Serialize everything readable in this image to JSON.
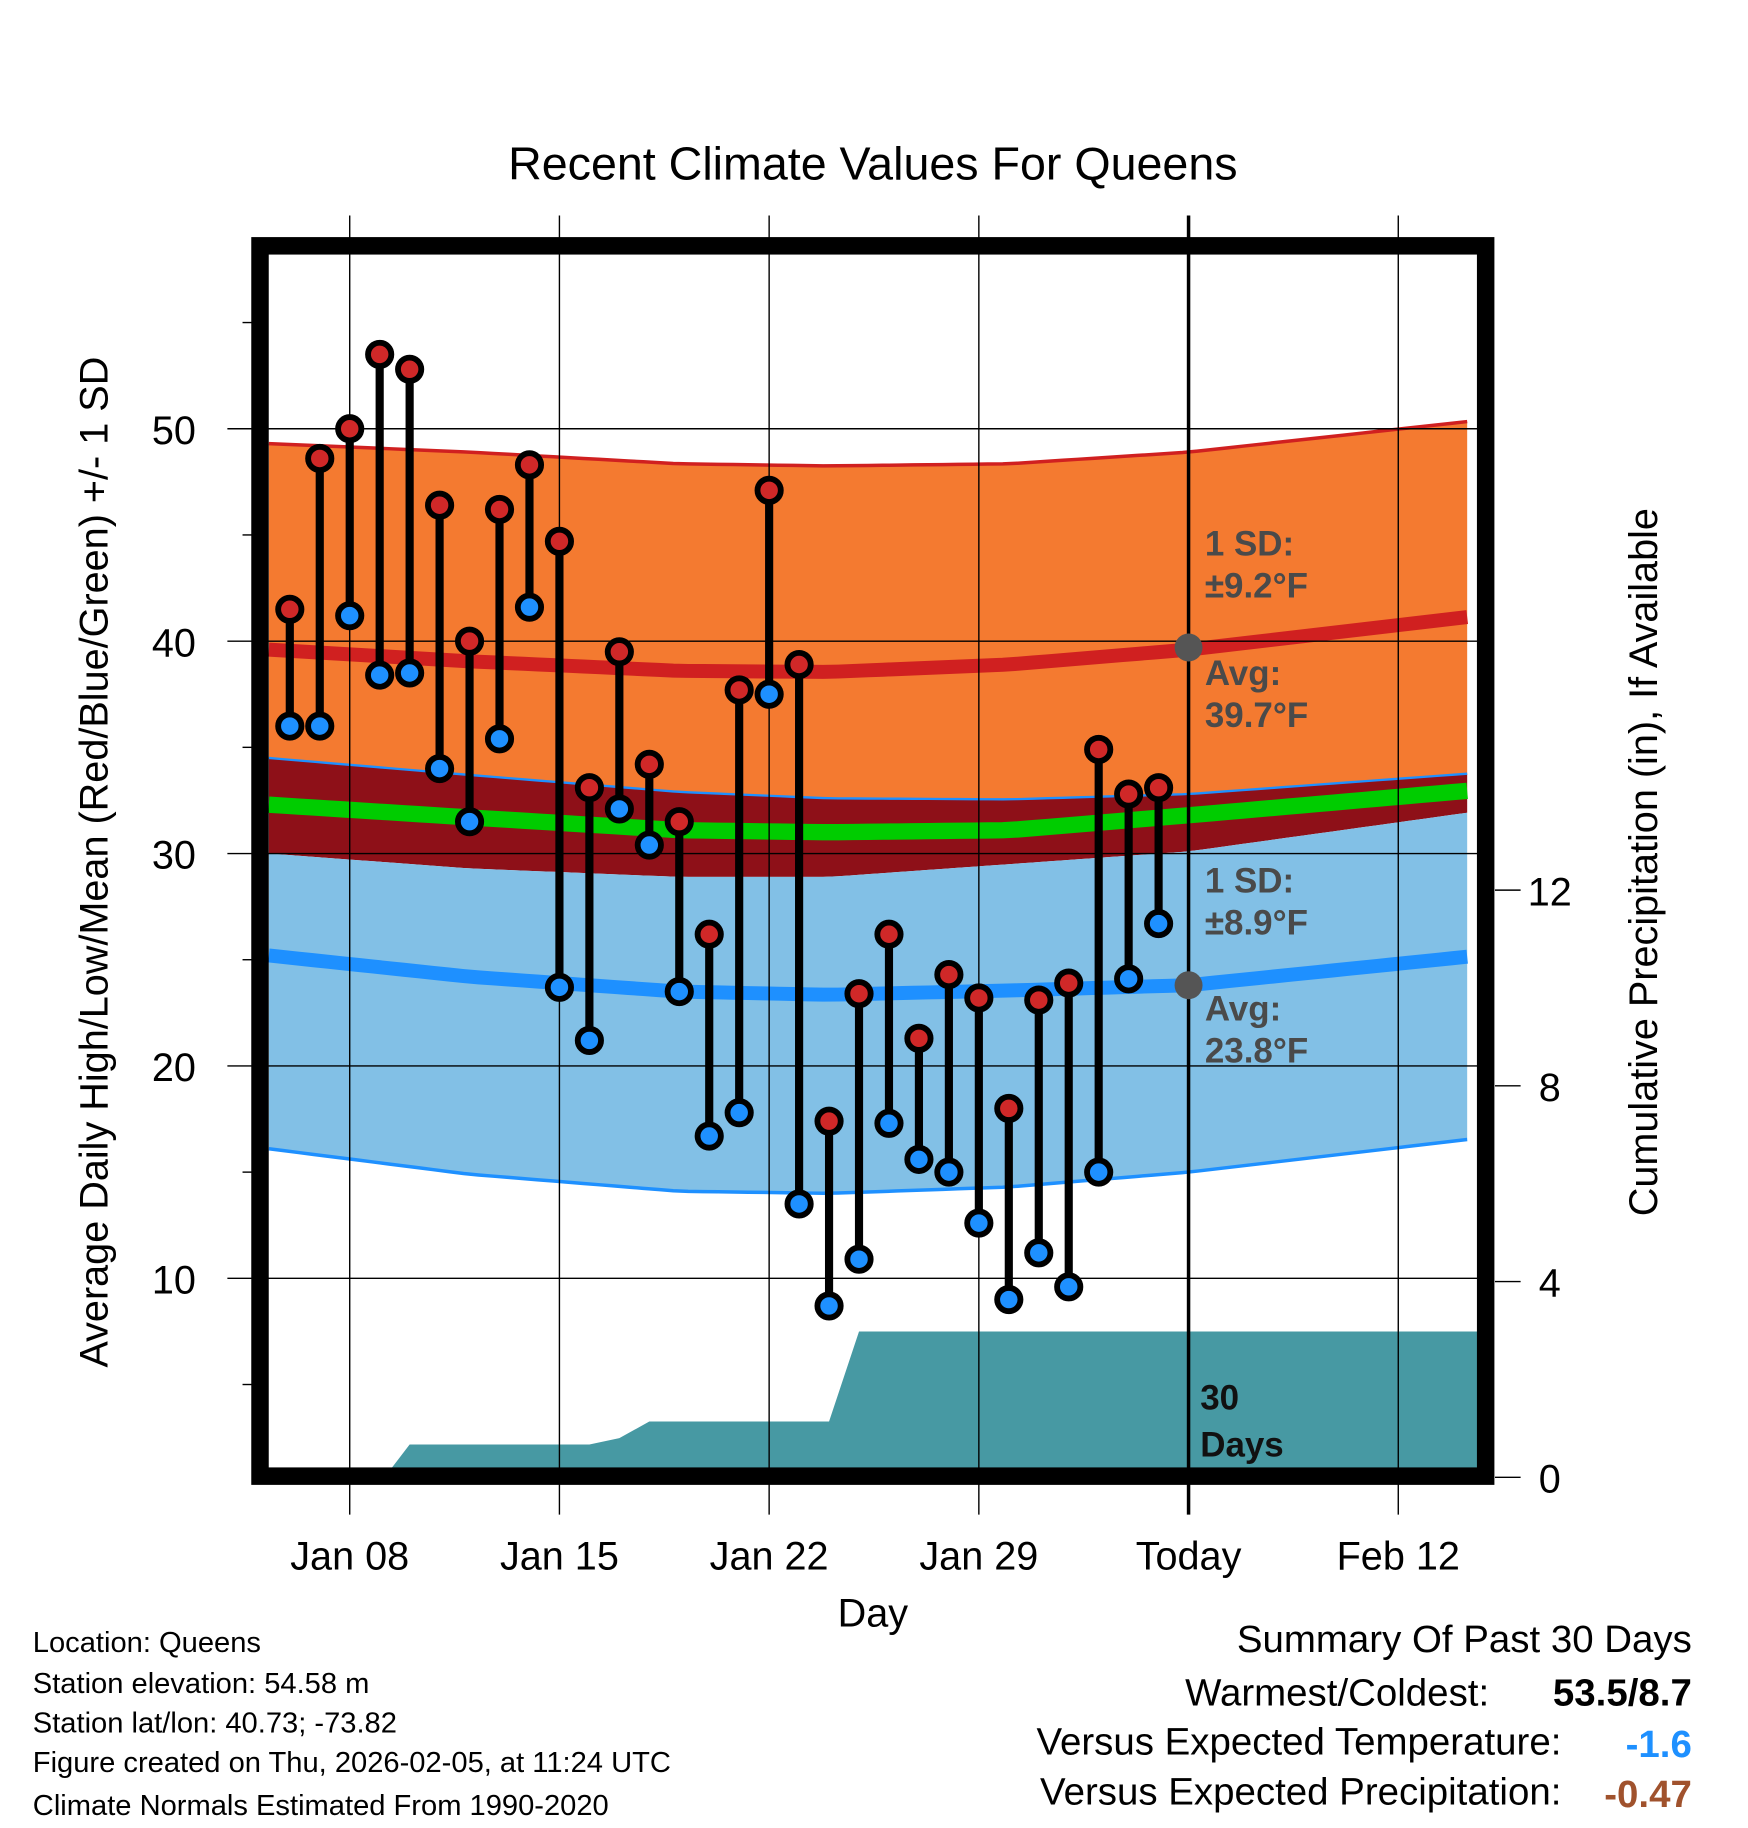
{
  "chart_data": {
    "type": "line",
    "title": "Recent Climate Values For Queens",
    "xlabel": "Day",
    "ylabel": "Average Daily High/Low/Mean (Red/Blue/Green) +/- 1 SD",
    "y2label": "Cumulative Precipitation (in), If Available",
    "ylim": [
      1.1,
      58.2
    ],
    "y2lim": [
      0,
      14.8
    ],
    "xlim_day_of_year": [
      5.3,
      45.7
    ],
    "grid": true,
    "x_ticks": [
      {
        "day": 8,
        "label": "Jan 08"
      },
      {
        "day": 15,
        "label": "Jan 15"
      },
      {
        "day": 22,
        "label": "Jan 22"
      },
      {
        "day": 29,
        "label": "Jan 29"
      },
      {
        "day": 36,
        "label": "Today"
      },
      {
        "day": 43,
        "label": "Feb 12"
      }
    ],
    "y_ticks": [
      10,
      20,
      30,
      40,
      50
    ],
    "y_minor_ticks": [
      5,
      15,
      25,
      35,
      45,
      55
    ],
    "y2_ticks": [
      0,
      4,
      8,
      12
    ],
    "today_day": 36,
    "daily": {
      "days": [
        6,
        7,
        8,
        9,
        10,
        11,
        12,
        13,
        14,
        15,
        16,
        17,
        18,
        19,
        20,
        21,
        22,
        23,
        24,
        25,
        26,
        27,
        28,
        29,
        30,
        31,
        32,
        33,
        34,
        35
      ],
      "highs": [
        41.5,
        48.6,
        50.0,
        53.5,
        52.8,
        46.4,
        40.0,
        46.2,
        48.3,
        44.7,
        33.1,
        39.5,
        34.2,
        31.5,
        26.2,
        37.7,
        47.1,
        38.9,
        17.4,
        23.4,
        26.2,
        21.3,
        24.3,
        23.2,
        18.0,
        23.1,
        23.9,
        34.9,
        32.8,
        33.1
      ],
      "lows": [
        36.0,
        36.0,
        41.2,
        38.4,
        38.5,
        34.0,
        31.5,
        35.4,
        41.6,
        23.7,
        21.2,
        32.1,
        30.4,
        23.5,
        16.7,
        17.8,
        37.5,
        13.5,
        8.7,
        10.9,
        17.3,
        15.6,
        15.0,
        12.6,
        9.0,
        11.2,
        9.6,
        15.0,
        24.1,
        26.7
      ]
    },
    "normals": {
      "days": [
        5.3,
        12,
        19,
        24,
        30,
        36,
        45.7
      ],
      "high_plus_sd": [
        49.3,
        48.9,
        48.35,
        48.25,
        48.35,
        48.9,
        50.4
      ],
      "high_avg": [
        39.6,
        39.05,
        38.6,
        38.55,
        38.9,
        39.6,
        41.2
      ],
      "high_minus_sd": [
        34.5,
        33.7,
        32.9,
        32.6,
        32.55,
        32.8,
        33.8
      ],
      "mean": [
        32.3,
        31.7,
        31.1,
        31.0,
        31.1,
        31.8,
        33.0
      ],
      "overlap_bottom": [
        30.0,
        29.3,
        28.9,
        28.9,
        29.5,
        30.1,
        32.0
      ],
      "low_avg": [
        25.2,
        24.2,
        23.5,
        23.35,
        23.55,
        23.8,
        25.2
      ],
      "low_minus_sd": [
        16.1,
        14.9,
        14.1,
        14.0,
        14.3,
        15.0,
        16.6
      ]
    },
    "precip_cumulative": {
      "days": [
        9.4,
        10,
        16,
        17,
        18,
        24,
        25,
        45.7
      ],
      "values": [
        0,
        0.67,
        0.67,
        0.8,
        1.14,
        1.14,
        2.98,
        2.98
      ]
    },
    "annotations": {
      "high_sd_label": "1 SD:",
      "high_sd_value": "±9.2°F",
      "high_avg_label": "Avg:",
      "high_avg_value": "39.7°F",
      "low_sd_label": "1 SD:",
      "low_sd_value": "±8.9°F",
      "low_avg_label": "Avg:",
      "low_avg_value": "23.8°F",
      "window_num": "30",
      "window_unit": "Days"
    },
    "colors": {
      "high_band": "#F47A30",
      "high_line": "#D02020",
      "overlap": "#8E1018",
      "mean": "#00CC00",
      "low_band": "#82C0E6",
      "low_line": "#1E90FF",
      "precip": "#4799A3",
      "high_dot": "#D02828",
      "low_dot": "#1E90FF",
      "today_dot": "#555555"
    }
  },
  "info": {
    "location": "Location: Queens",
    "elevation": "Station elevation: 54.58 m",
    "latlon": "Station lat/lon: 40.73; -73.82",
    "created": "Figure created on Thu, 2026-02-05, at 11:24 UTC",
    "normals": "Climate Normals Estimated From 1990-2020"
  },
  "summary": {
    "title": "Summary Of Past 30 Days",
    "warm_cold_label": "Warmest/Coldest:",
    "warm_cold_value": "53.5/8.7",
    "temp_label": "Versus Expected Temperature:",
    "temp_value": "-1.6",
    "temp_color": "#1E90FF",
    "precip_label": "Versus Expected Precipitation:",
    "precip_value": "-0.47",
    "precip_color": "#A0522D"
  }
}
